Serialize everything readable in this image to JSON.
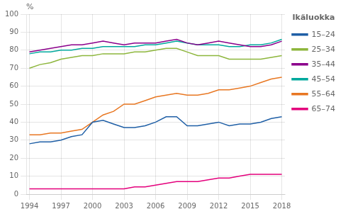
{
  "chart_data": {
    "type": "line",
    "ylabel": "%",
    "legend_title": "Ikäluokka",
    "legend": "right",
    "grid": true,
    "x": [
      1994,
      1995,
      1996,
      1997,
      1998,
      1999,
      2000,
      2001,
      2002,
      2003,
      2004,
      2005,
      2006,
      2007,
      2008,
      2009,
      2010,
      2011,
      2012,
      2013,
      2014,
      2015,
      2016,
      2017,
      2018
    ],
    "series": [
      {
        "name": "15–24",
        "color": "#1F5FA6",
        "values": [
          28,
          29,
          29,
          30,
          32,
          33,
          40,
          41,
          39,
          37,
          37,
          38,
          40,
          43,
          43,
          38,
          38,
          39,
          40,
          38,
          39,
          39,
          40,
          42,
          43
        ]
      },
      {
        "name": "25–34",
        "color": "#8DB63C",
        "values": [
          70,
          72,
          73,
          75,
          76,
          77,
          77,
          78,
          78,
          78,
          79,
          79,
          80,
          81,
          81,
          79,
          77,
          77,
          77,
          75,
          75,
          75,
          75,
          76,
          77
        ]
      },
      {
        "name": "35–44",
        "color": "#8B008B",
        "values": [
          79,
          80,
          81,
          82,
          83,
          83,
          84,
          85,
          84,
          83,
          84,
          84,
          84,
          85,
          86,
          84,
          83,
          84,
          85,
          84,
          83,
          82,
          82,
          83,
          85
        ]
      },
      {
        "name": "45–54",
        "color": "#00A89D",
        "values": [
          78,
          79,
          79,
          80,
          80,
          81,
          81,
          82,
          82,
          82,
          82,
          83,
          83,
          84,
          85,
          84,
          83,
          83,
          83,
          82,
          82,
          83,
          83,
          84,
          86
        ]
      },
      {
        "name": "55–64",
        "color": "#E87722",
        "values": [
          33,
          33,
          34,
          34,
          35,
          36,
          40,
          44,
          46,
          50,
          50,
          52,
          54,
          55,
          56,
          55,
          55,
          56,
          58,
          58,
          59,
          60,
          62,
          64,
          65
        ]
      },
      {
        "name": "65–74",
        "color": "#E4007C",
        "values": [
          3,
          3,
          3,
          3,
          3,
          3,
          3,
          3,
          3,
          3,
          4,
          4,
          5,
          6,
          7,
          7,
          7,
          8,
          9,
          9,
          10,
          11,
          11,
          11,
          11
        ]
      }
    ],
    "xlim": [
      1993.7,
      2018.3
    ],
    "xticks": [
      1994,
      1997,
      2000,
      2003,
      2006,
      2009,
      2012,
      2015,
      2018
    ],
    "ylim": [
      0,
      100
    ],
    "yticks": [
      0,
      10,
      20,
      30,
      40,
      50,
      60,
      70,
      80,
      90,
      100
    ]
  }
}
